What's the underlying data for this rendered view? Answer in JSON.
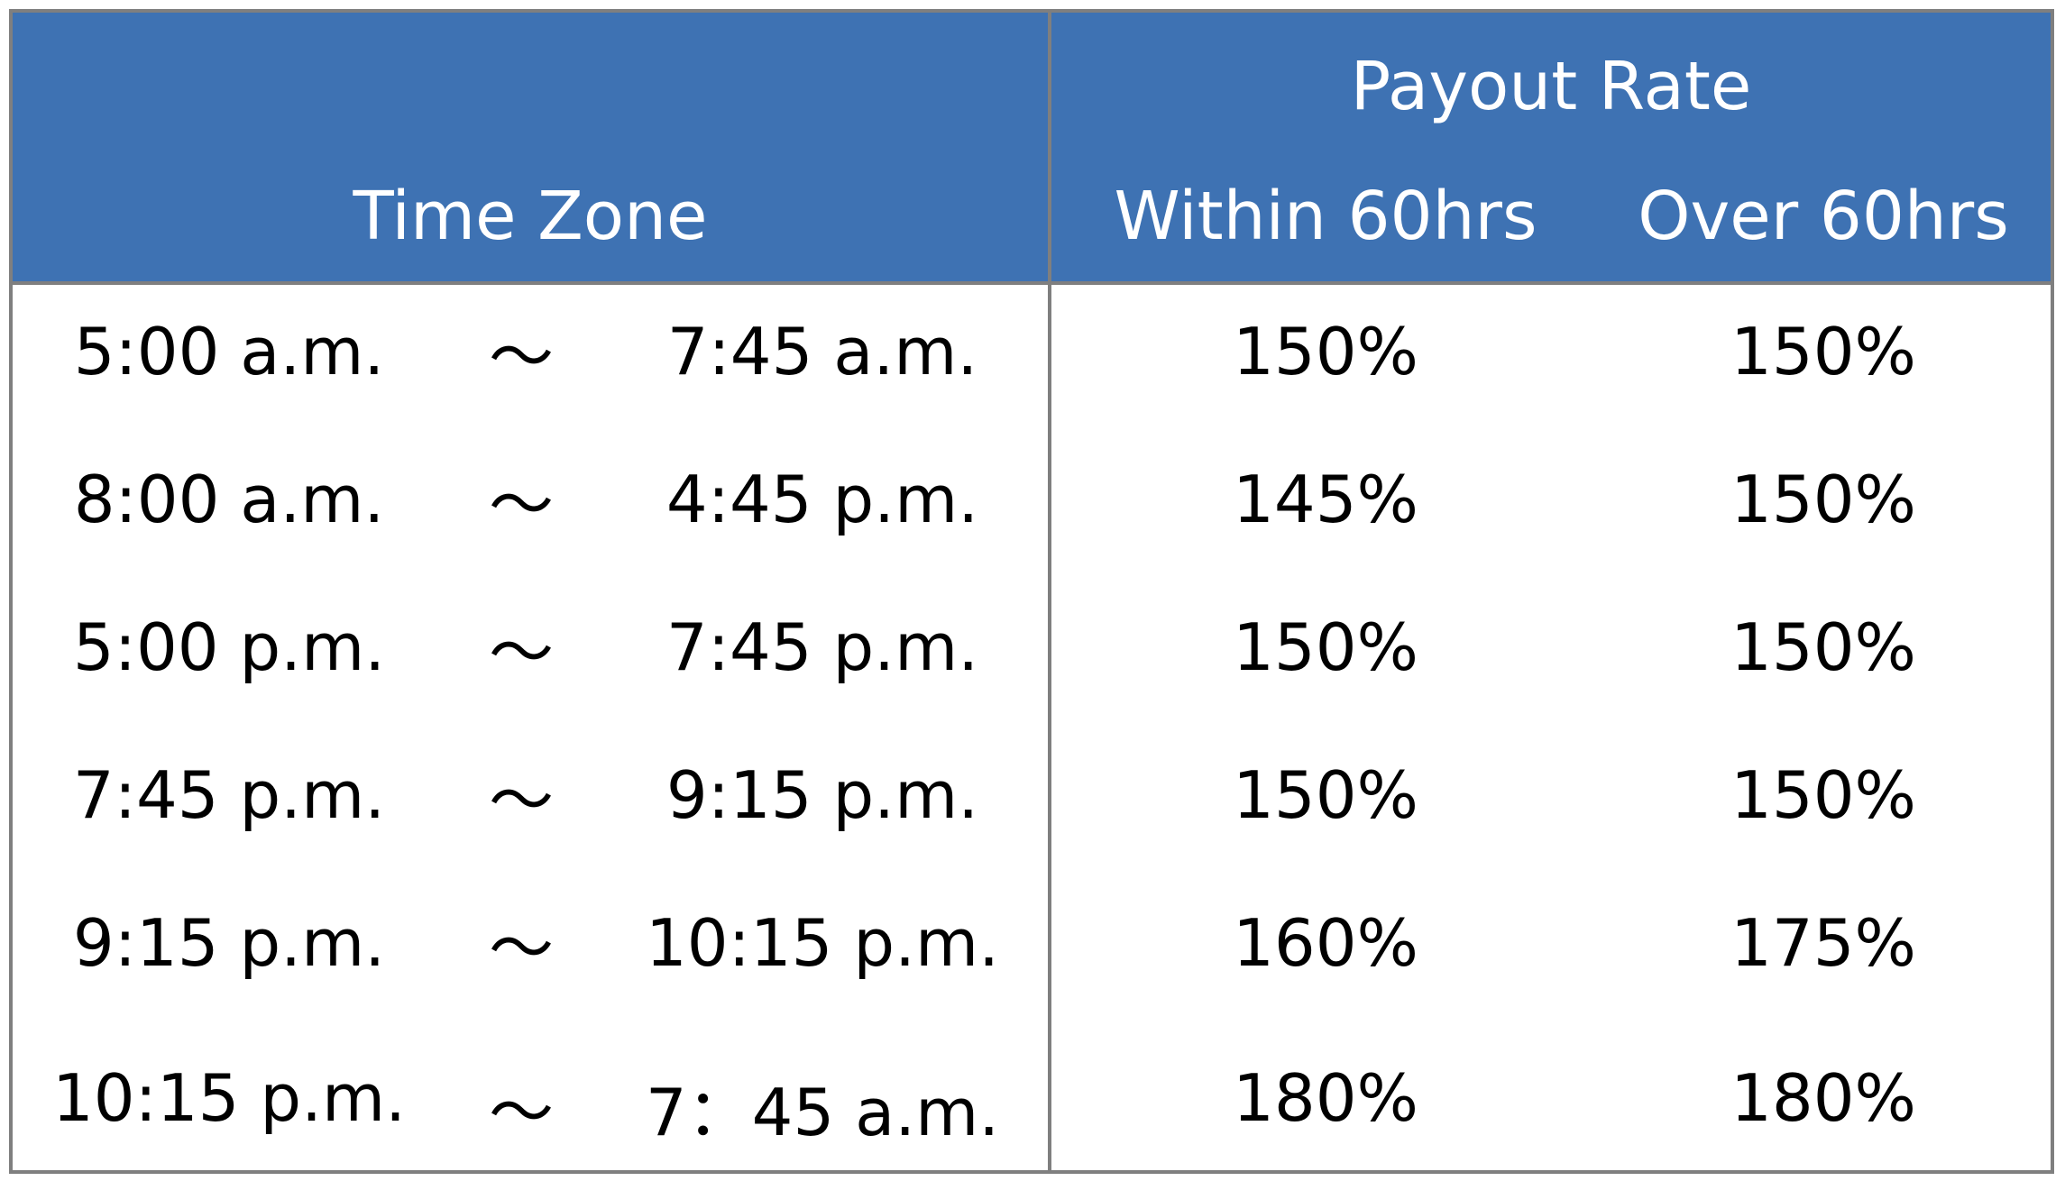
{
  "header": {
    "time_zone": "Time Zone",
    "payout_rate": "Payout Rate",
    "within_60": "Within 60hrs",
    "over_60": "Over 60hrs"
  },
  "separator": "～",
  "rows": [
    {
      "start": "5:00 a.m.",
      "end": "7:45 a.m.",
      "within": "150%",
      "over": "150%"
    },
    {
      "start": "8:00 a.m.",
      "end": "4:45 p.m.",
      "within": "145%",
      "over": "150%"
    },
    {
      "start": "5:00 p.m.",
      "end": "7:45 p.m.",
      "within": "150%",
      "over": "150%"
    },
    {
      "start": "7:45 p.m.",
      "end": "9:15 p.m.",
      "within": "150%",
      "over": "150%"
    },
    {
      "start": "9:15 p.m.",
      "end": "10:15 p.m.",
      "within": "160%",
      "over": "175%"
    },
    {
      "start": "10:15 p.m.",
      "end": "7：45 a.m.",
      "within": "180%",
      "over": "180%"
    }
  ],
  "colors": {
    "header_bg": "#3e72b3",
    "border": "#7f7f7f",
    "header_text": "#ffffff",
    "body_text": "#000000"
  }
}
